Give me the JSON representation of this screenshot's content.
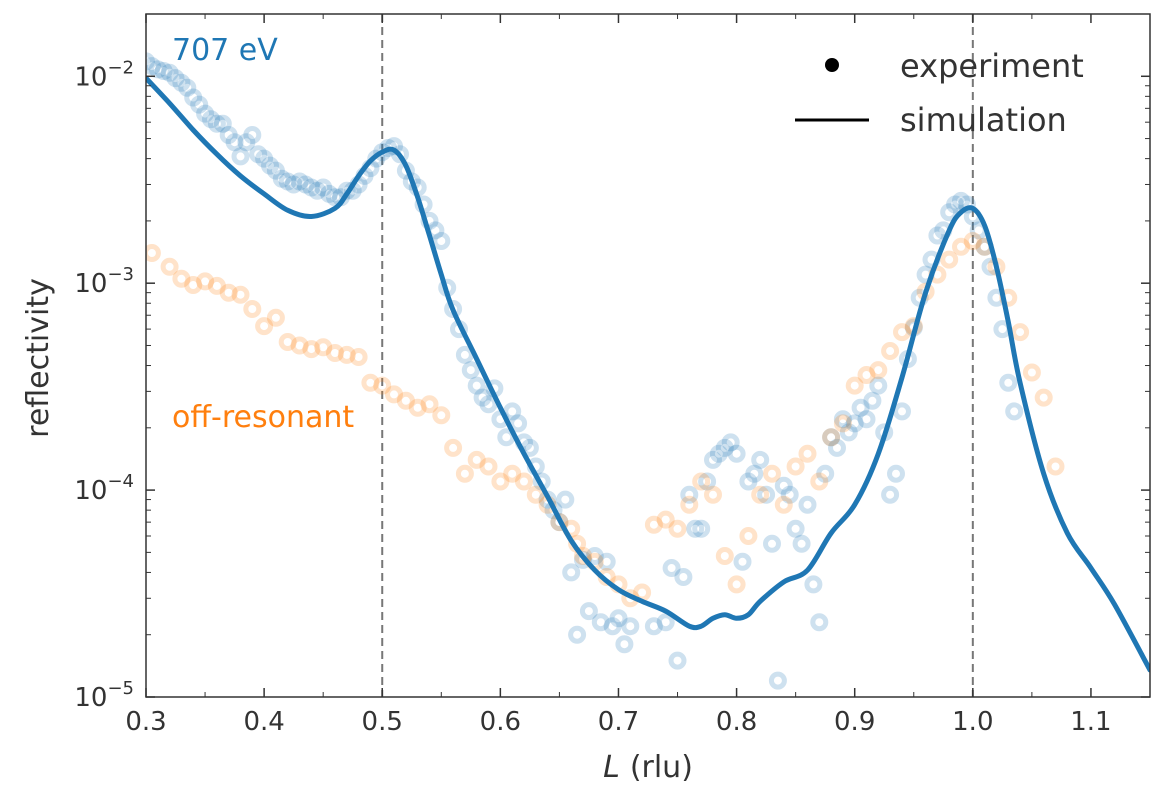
{
  "chart_data": {
    "type": "scatter",
    "xlabel_italic": "L",
    "xlabel_unit": "(rlu)",
    "ylabel": "reflectivity",
    "xlim": [
      0.3,
      1.15
    ],
    "ylim": [
      1e-05,
      0.02
    ],
    "yscale": "log",
    "x_ticks": [
      "0.3",
      "0.4",
      "0.5",
      "0.6",
      "0.7",
      "0.8",
      "0.9",
      "1.0",
      "1.1"
    ],
    "y_ticks": [
      {
        "base": "10",
        "exp": "−2",
        "value": 0.01
      },
      {
        "base": "10",
        "exp": "−3",
        "value": 0.001
      },
      {
        "base": "10",
        "exp": "−4",
        "value": 0.0001
      },
      {
        "base": "10",
        "exp": "−5",
        "value": 1e-05
      }
    ],
    "grid": false,
    "vlines": [
      0.5,
      1.0
    ],
    "legend": {
      "placement": "top-right",
      "entries": [
        {
          "label": "experiment",
          "marker": "dot"
        },
        {
          "label": "simulation",
          "marker": "line"
        }
      ]
    },
    "annotations": [
      {
        "text": "707 eV",
        "color": "#1f77b4",
        "position": "top-left"
      },
      {
        "text": "off-resonant",
        "color": "#ff7f0e",
        "position": "left"
      }
    ],
    "colors": {
      "resonant": "#1f77b4",
      "off_resonant": "#ff7f0e",
      "simulation": "#1f77b4",
      "vline": "#777777"
    },
    "series": [
      {
        "kind": "experiment",
        "color": "#1f77b4",
        "points": [
          [
            0.3,
            0.0118
          ],
          [
            0.305,
            0.0112
          ],
          [
            0.31,
            0.0108
          ],
          [
            0.315,
            0.0106
          ],
          [
            0.32,
            0.0104
          ],
          [
            0.325,
            0.0098
          ],
          [
            0.33,
            0.0093
          ],
          [
            0.335,
            0.0088
          ],
          [
            0.34,
            0.0079
          ],
          [
            0.345,
            0.0073
          ],
          [
            0.35,
            0.0066
          ],
          [
            0.355,
            0.0062
          ],
          [
            0.36,
            0.0059
          ],
          [
            0.365,
            0.0059
          ],
          [
            0.37,
            0.0052
          ],
          [
            0.375,
            0.0048
          ],
          [
            0.38,
            0.0041
          ],
          [
            0.385,
            0.0048
          ],
          [
            0.39,
            0.0052
          ],
          [
            0.395,
            0.0042
          ],
          [
            0.4,
            0.004
          ],
          [
            0.405,
            0.0037
          ],
          [
            0.41,
            0.0035
          ],
          [
            0.415,
            0.0032
          ],
          [
            0.42,
            0.0031
          ],
          [
            0.425,
            0.003
          ],
          [
            0.43,
            0.0031
          ],
          [
            0.435,
            0.003
          ],
          [
            0.44,
            0.0029
          ],
          [
            0.445,
            0.0028
          ],
          [
            0.45,
            0.0029
          ],
          [
            0.455,
            0.0027
          ],
          [
            0.46,
            0.0026
          ],
          [
            0.465,
            0.0026
          ],
          [
            0.47,
            0.0028
          ],
          [
            0.475,
            0.0028
          ],
          [
            0.48,
            0.003
          ],
          [
            0.485,
            0.0033
          ],
          [
            0.49,
            0.0036
          ],
          [
            0.495,
            0.004
          ],
          [
            0.5,
            0.0043
          ],
          [
            0.505,
            0.0045
          ],
          [
            0.51,
            0.0046
          ],
          [
            0.515,
            0.0042
          ],
          [
            0.52,
            0.0035
          ],
          [
            0.525,
            0.0031
          ],
          [
            0.53,
            0.0029
          ],
          [
            0.535,
            0.0024
          ],
          [
            0.54,
            0.002
          ],
          [
            0.545,
            0.0018
          ],
          [
            0.55,
            0.0016
          ],
          [
            0.555,
            0.00095
          ],
          [
            0.56,
            0.00075
          ],
          [
            0.565,
            0.0006
          ],
          [
            0.57,
            0.00045
          ],
          [
            0.575,
            0.00038
          ],
          [
            0.58,
            0.00032
          ],
          [
            0.585,
            0.00028
          ],
          [
            0.59,
            0.00026
          ],
          [
            0.595,
            0.00031
          ],
          [
            0.6,
            0.00022
          ],
          [
            0.605,
            0.00018
          ],
          [
            0.61,
            0.00024
          ],
          [
            0.615,
            0.00021
          ],
          [
            0.62,
            0.00017
          ],
          [
            0.625,
            0.00016
          ],
          [
            0.63,
            0.00013
          ],
          [
            0.635,
            0.00011
          ],
          [
            0.64,
            9e-05
          ],
          [
            0.645,
            8e-05
          ],
          [
            0.65,
            7e-05
          ],
          [
            0.655,
            9e-05
          ],
          [
            0.66,
            4e-05
          ],
          [
            0.665,
            2e-05
          ],
          [
            0.67,
            4.6e-05
          ],
          [
            0.675,
            2.6e-05
          ],
          [
            0.68,
            4.8e-05
          ],
          [
            0.685,
            2.3e-05
          ],
          [
            0.69,
            4.5e-05
          ],
          [
            0.695,
            2.2e-05
          ],
          [
            0.7,
            2.4e-05
          ],
          [
            0.705,
            1.8e-05
          ],
          [
            0.71,
            2.2e-05
          ],
          [
            0.73,
            2.2e-05
          ],
          [
            0.74,
            2.3e-05
          ],
          [
            0.745,
            4.2e-05
          ],
          [
            0.75,
            1.5e-05
          ],
          [
            0.755,
            3.8e-05
          ],
          [
            0.76,
            9.5e-05
          ],
          [
            0.765,
            6.5e-05
          ],
          [
            0.77,
            6.5e-05
          ],
          [
            0.775,
            0.00011
          ],
          [
            0.78,
            0.00014
          ],
          [
            0.785,
            0.00015
          ],
          [
            0.79,
            0.00016
          ],
          [
            0.795,
            0.00017
          ],
          [
            0.8,
            0.00015
          ],
          [
            0.805,
            4.5e-05
          ],
          [
            0.81,
            0.00011
          ],
          [
            0.815,
            0.00012
          ],
          [
            0.82,
            0.00014
          ],
          [
            0.825,
            9.5e-05
          ],
          [
            0.83,
            5.5e-05
          ],
          [
            0.835,
            1.2e-05
          ],
          [
            0.84,
            0.000105
          ],
          [
            0.845,
            9.5e-05
          ],
          [
            0.85,
            6.5e-05
          ],
          [
            0.855,
            5.5e-05
          ],
          [
            0.86,
            8.5e-05
          ],
          [
            0.865,
            3.5e-05
          ],
          [
            0.87,
            2.3e-05
          ],
          [
            0.875,
            0.00012
          ],
          [
            0.88,
            0.00018
          ],
          [
            0.885,
            0.00016
          ],
          [
            0.89,
            0.00022
          ],
          [
            0.895,
            0.00019
          ],
          [
            0.9,
            0.00021
          ],
          [
            0.905,
            0.00025
          ],
          [
            0.91,
            0.00022
          ],
          [
            0.915,
            0.00027
          ],
          [
            0.92,
            0.00032
          ],
          [
            0.925,
            0.00019
          ],
          [
            0.93,
            9.5e-05
          ],
          [
            0.935,
            0.00012
          ],
          [
            0.94,
            0.00024
          ],
          [
            0.945,
            0.00043
          ],
          [
            0.95,
            0.00061
          ],
          [
            0.955,
            0.00085
          ],
          [
            0.96,
            0.0011
          ],
          [
            0.965,
            0.0013
          ],
          [
            0.97,
            0.0017
          ],
          [
            0.975,
            0.0018
          ],
          [
            0.98,
            0.0022
          ],
          [
            0.985,
            0.0024
          ],
          [
            0.99,
            0.0025
          ],
          [
            0.995,
            0.0024
          ],
          [
            1.0,
            0.0021
          ],
          [
            1.005,
            0.0018
          ],
          [
            1.01,
            0.0015
          ],
          [
            1.015,
            0.0012
          ],
          [
            1.02,
            0.00085
          ],
          [
            1.025,
            0.0006
          ],
          [
            1.03,
            0.00033
          ],
          [
            1.035,
            0.00024
          ]
        ]
      },
      {
        "kind": "experiment",
        "color": "#ff7f0e",
        "points": [
          [
            0.305,
            0.0014
          ],
          [
            0.32,
            0.0012
          ],
          [
            0.33,
            0.00105
          ],
          [
            0.34,
            0.00098
          ],
          [
            0.35,
            0.00102
          ],
          [
            0.36,
            0.00097
          ],
          [
            0.37,
            0.0009
          ],
          [
            0.38,
            0.00088
          ],
          [
            0.39,
            0.00075
          ],
          [
            0.4,
            0.00062
          ],
          [
            0.41,
            0.00068
          ],
          [
            0.42,
            0.00052
          ],
          [
            0.43,
            0.0005
          ],
          [
            0.44,
            0.00048
          ],
          [
            0.45,
            0.00049
          ],
          [
            0.46,
            0.00046
          ],
          [
            0.47,
            0.00045
          ],
          [
            0.48,
            0.00044
          ],
          [
            0.49,
            0.00033
          ],
          [
            0.5,
            0.00032
          ],
          [
            0.51,
            0.00029
          ],
          [
            0.52,
            0.00027
          ],
          [
            0.53,
            0.00025
          ],
          [
            0.54,
            0.00026
          ],
          [
            0.55,
            0.00023
          ],
          [
            0.56,
            0.00016
          ],
          [
            0.57,
            0.00012
          ],
          [
            0.58,
            0.00014
          ],
          [
            0.59,
            0.00013
          ],
          [
            0.6,
            0.00011
          ],
          [
            0.61,
            0.00012
          ],
          [
            0.62,
            0.00011
          ],
          [
            0.63,
            9.5e-05
          ],
          [
            0.64,
            8.5e-05
          ],
          [
            0.65,
            7e-05
          ],
          [
            0.66,
            6.5e-05
          ],
          [
            0.665,
            5.5e-05
          ],
          [
            0.67,
            4.8e-05
          ],
          [
            0.68,
            4.5e-05
          ],
          [
            0.69,
            3.8e-05
          ],
          [
            0.7,
            3.5e-05
          ],
          [
            0.71,
            3e-05
          ],
          [
            0.72,
            3.2e-05
          ],
          [
            0.73,
            6.8e-05
          ],
          [
            0.74,
            7.2e-05
          ],
          [
            0.75,
            6.5e-05
          ],
          [
            0.76,
            8.5e-05
          ],
          [
            0.77,
            0.00011
          ],
          [
            0.78,
            9.5e-05
          ],
          [
            0.79,
            4.8e-05
          ],
          [
            0.8,
            3.5e-05
          ],
          [
            0.81,
            6e-05
          ],
          [
            0.82,
            9.5e-05
          ],
          [
            0.83,
            0.00012
          ],
          [
            0.84,
            8.5e-05
          ],
          [
            0.85,
            0.00013
          ],
          [
            0.86,
            0.00015
          ],
          [
            0.87,
            0.00011
          ],
          [
            0.88,
            0.00018
          ],
          [
            0.89,
            0.00021
          ],
          [
            0.9,
            0.00032
          ],
          [
            0.91,
            0.00036
          ],
          [
            0.92,
            0.00038
          ],
          [
            0.93,
            0.00047
          ],
          [
            0.94,
            0.00058
          ],
          [
            0.95,
            0.00062
          ],
          [
            0.96,
            0.00091
          ],
          [
            0.97,
            0.0011
          ],
          [
            0.98,
            0.0013
          ],
          [
            0.99,
            0.0015
          ],
          [
            1.0,
            0.0016
          ],
          [
            1.01,
            0.0015
          ],
          [
            1.02,
            0.0012
          ],
          [
            1.03,
            0.00085
          ],
          [
            1.04,
            0.00058
          ],
          [
            1.05,
            0.00037
          ],
          [
            1.06,
            0.00028
          ],
          [
            1.07,
            0.00013
          ]
        ]
      },
      {
        "kind": "simulation",
        "color": "#1f77b4",
        "points": [
          [
            0.3,
            0.0098
          ],
          [
            0.32,
            0.0074
          ],
          [
            0.34,
            0.0055
          ],
          [
            0.36,
            0.0042
          ],
          [
            0.38,
            0.0033
          ],
          [
            0.4,
            0.0027
          ],
          [
            0.42,
            0.00225
          ],
          [
            0.44,
            0.0021
          ],
          [
            0.46,
            0.0023
          ],
          [
            0.47,
            0.0027
          ],
          [
            0.48,
            0.0033
          ],
          [
            0.49,
            0.0039
          ],
          [
            0.5,
            0.0043
          ],
          [
            0.51,
            0.0044
          ],
          [
            0.52,
            0.0037
          ],
          [
            0.53,
            0.0026
          ],
          [
            0.54,
            0.0017
          ],
          [
            0.55,
            0.0011
          ],
          [
            0.56,
            0.00074
          ],
          [
            0.58,
            0.00043
          ],
          [
            0.6,
            0.00025
          ],
          [
            0.62,
            0.00015
          ],
          [
            0.64,
            9.3e-05
          ],
          [
            0.66,
            5.7e-05
          ],
          [
            0.68,
            4.1e-05
          ],
          [
            0.7,
            3.3e-05
          ],
          [
            0.72,
            2.9e-05
          ],
          [
            0.74,
            2.6e-05
          ],
          [
            0.76,
            2.2e-05
          ],
          [
            0.77,
            2.2e-05
          ],
          [
            0.78,
            2.4e-05
          ],
          [
            0.79,
            2.5e-05
          ],
          [
            0.8,
            2.4e-05
          ],
          [
            0.81,
            2.5e-05
          ],
          [
            0.82,
            2.9e-05
          ],
          [
            0.84,
            3.6e-05
          ],
          [
            0.86,
            4.1e-05
          ],
          [
            0.88,
            6.2e-05
          ],
          [
            0.9,
            8.5e-05
          ],
          [
            0.92,
            0.00015
          ],
          [
            0.94,
            0.00035
          ],
          [
            0.96,
            0.0009
          ],
          [
            0.98,
            0.0018
          ],
          [
            0.99,
            0.0022
          ],
          [
            1.0,
            0.0023
          ],
          [
            1.01,
            0.0019
          ],
          [
            1.02,
            0.0012
          ],
          [
            1.03,
            0.00065
          ],
          [
            1.04,
            0.00033
          ],
          [
            1.06,
            0.00012
          ],
          [
            1.08,
            6.2e-05
          ],
          [
            1.1,
            4.2e-05
          ],
          [
            1.12,
            2.8e-05
          ],
          [
            1.15,
            1.35e-05
          ]
        ]
      }
    ]
  }
}
